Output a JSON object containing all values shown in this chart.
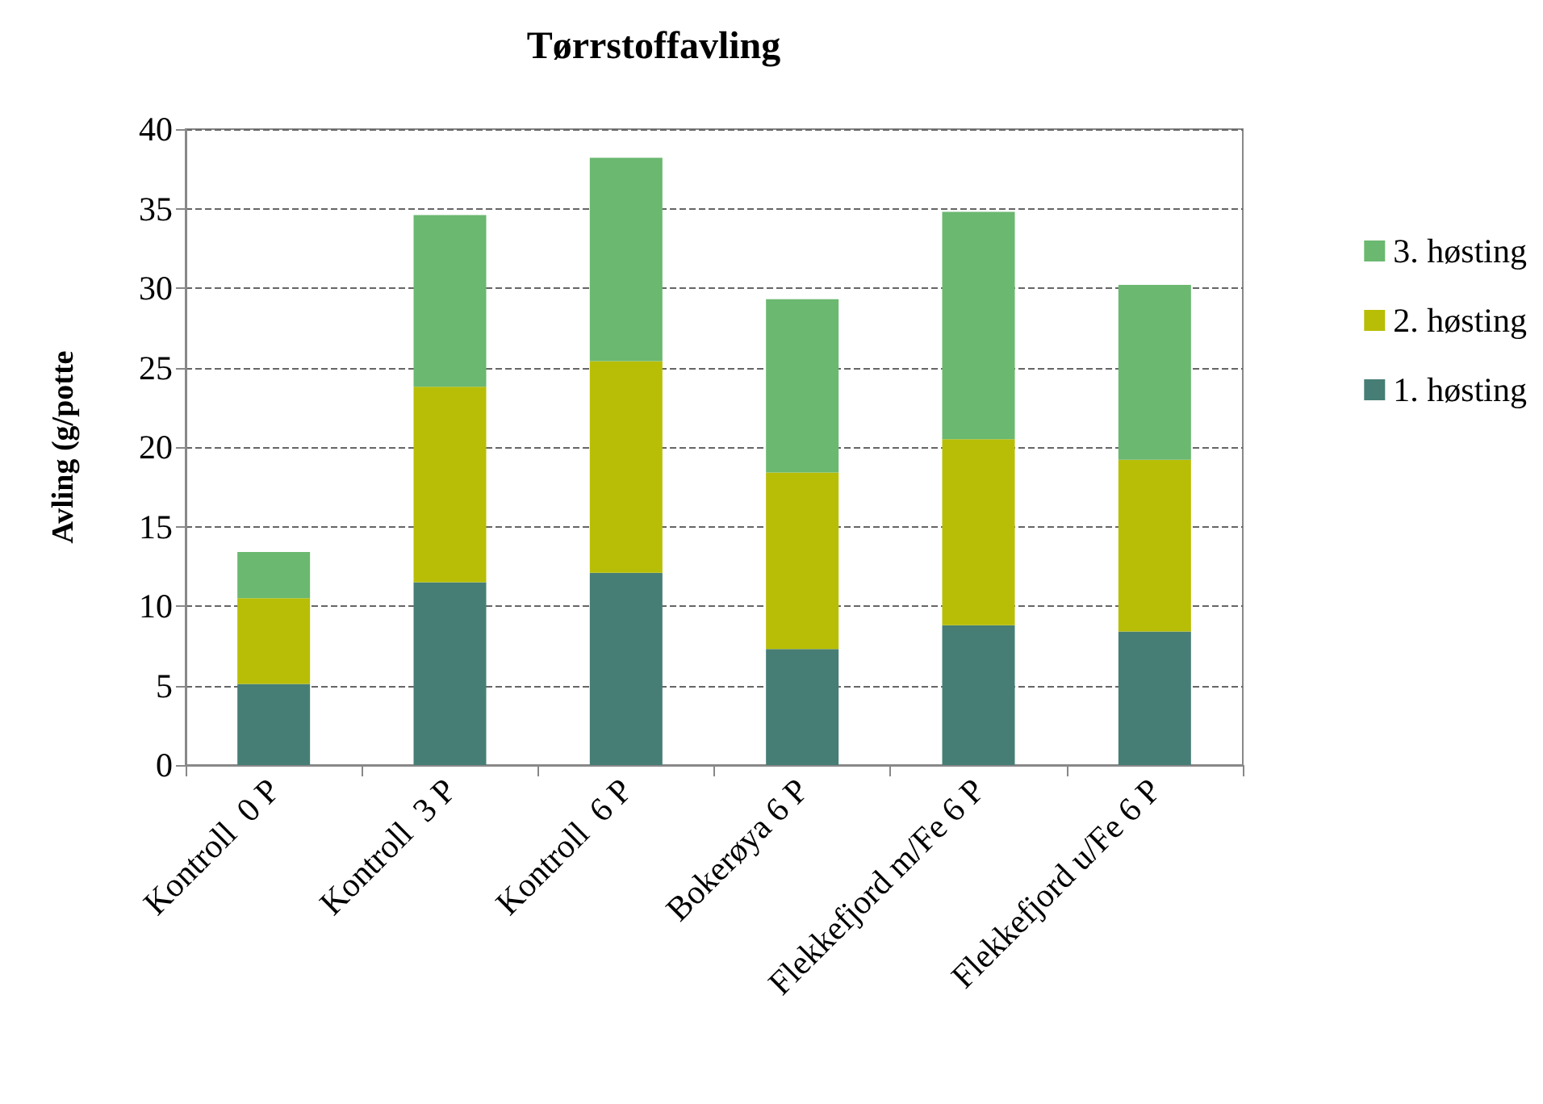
{
  "chart_data": {
    "type": "bar",
    "title": "Tørrstoffavling",
    "ylabel": "Avling (g/potte",
    "categories": [
      "Kontroll  0 P",
      "Kontroll  3 P",
      "Kontroll  6 P",
      "Bokerøya 6 P",
      "Flekkefjord m/Fe 6 P",
      "Flekkefjord u/Fe 6 P"
    ],
    "series": [
      {
        "name": "1. høsting",
        "color": "#467e75",
        "values": [
          5.1,
          11.5,
          12.1,
          7.3,
          8.8,
          8.4
        ]
      },
      {
        "name": "2. høsting",
        "color": "#b8be05",
        "values": [
          5.4,
          12.3,
          13.3,
          11.1,
          11.7,
          10.8
        ]
      },
      {
        "name": "3. høsting",
        "color": "#6bb870",
        "values": [
          2.9,
          10.8,
          12.8,
          10.9,
          14.3,
          11.0
        ]
      }
    ],
    "stacked": true,
    "ylim": [
      0,
      40
    ],
    "yticks": [
      0,
      5,
      10,
      15,
      20,
      25,
      30,
      35,
      40
    ],
    "grid": "y",
    "legend": "right"
  }
}
